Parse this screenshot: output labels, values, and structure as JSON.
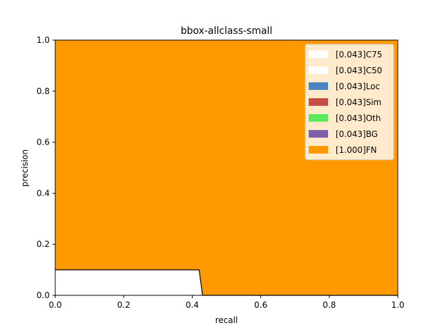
{
  "chart_data": {
    "type": "area",
    "title": "bbox-allclass-small",
    "xlabel": "recall",
    "ylabel": "precision",
    "xlim": [
      0,
      1
    ],
    "ylim": [
      0,
      1
    ],
    "xticks": [
      "0.0",
      "0.2",
      "0.4",
      "0.6",
      "0.8",
      "1.0"
    ],
    "yticks": [
      "0.0",
      "0.2",
      "0.4",
      "0.6",
      "0.8",
      "1.0"
    ],
    "grid": false,
    "legend_position": "top-right",
    "series": [
      {
        "name": "[0.043]C75",
        "color": "#ffffff",
        "x": [
          0,
          0.42,
          0.43,
          1.0
        ],
        "y": [
          0.1,
          0.1,
          0,
          0
        ]
      },
      {
        "name": "[0.043]C50",
        "color": "#ffffff",
        "x": [
          0,
          0.42,
          0.43,
          1.0
        ],
        "y": [
          0.1,
          0.1,
          0,
          0
        ]
      },
      {
        "name": "[0.043]Loc",
        "color": "#4c84c2",
        "x": [
          0,
          0.42,
          0.43,
          1.0
        ],
        "y": [
          0.1,
          0.1,
          0,
          0
        ]
      },
      {
        "name": "[0.043]Sim",
        "color": "#c44e45",
        "x": [
          0,
          0.42,
          0.43,
          1.0
        ],
        "y": [
          0.1,
          0.1,
          0,
          0
        ]
      },
      {
        "name": "[0.043]Oth",
        "color": "#5ee85e",
        "x": [
          0,
          0.42,
          0.43,
          1.0
        ],
        "y": [
          0.1,
          0.1,
          0,
          0
        ]
      },
      {
        "name": "[0.043]BG",
        "color": "#7d62a8",
        "x": [
          0,
          0.42,
          0.43,
          1.0
        ],
        "y": [
          0.1,
          0.1,
          0,
          0
        ]
      },
      {
        "name": "[1.000]FN",
        "color": "#ff9900",
        "x": [
          0,
          1.0
        ],
        "y": [
          1.0,
          1.0
        ]
      }
    ]
  }
}
